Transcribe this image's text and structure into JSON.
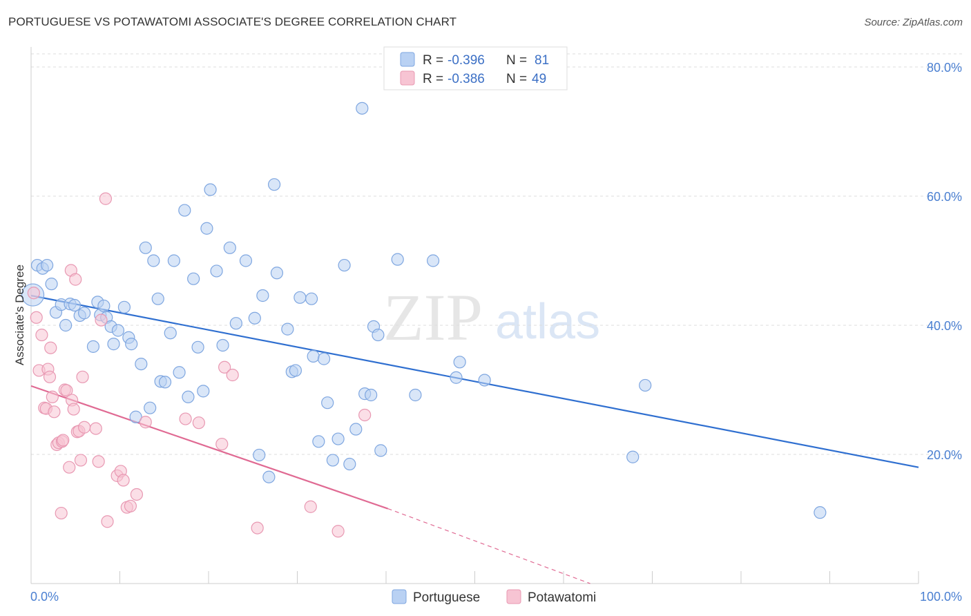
{
  "title": "PORTUGUESE VS POTAWATOMI ASSOCIATE'S DEGREE CORRELATION CHART",
  "source": "Source: ZipAtlas.com",
  "watermark": {
    "zip": "ZIP",
    "atlas": "atlas"
  },
  "colors": {
    "portuguese_fill": "#b9d1f3",
    "portuguese_stroke": "#7ea6e0",
    "portuguese_line": "#2f6fd0",
    "potawatomi_fill": "#f7c4d3",
    "potawatomi_stroke": "#e898b2",
    "potawatomi_line": "#e06a93",
    "axis_label": "#4a7fd1",
    "grid": "#dddddd"
  },
  "legend": {
    "rows": [
      {
        "r_label": "R = ",
        "r_value": "-0.396",
        "n_label": "N = ",
        "n_value": "81"
      },
      {
        "r_label": "R = ",
        "r_value": "-0.386",
        "n_label": "N = ",
        "n_value": "49"
      }
    ]
  },
  "chart_data": {
    "type": "scatter",
    "title": "PORTUGUESE VS POTAWATOMI ASSOCIATE'S DEGREE CORRELATION CHART",
    "xlabel": "",
    "ylabel": "Associate's Degree",
    "xlim": [
      0,
      100
    ],
    "ylim": [
      0,
      80
    ],
    "x_ticks": [
      0,
      100
    ],
    "x_tick_labels": [
      "0.0%",
      "100.0%"
    ],
    "y_ticks": [
      20,
      40,
      60,
      80
    ],
    "y_tick_labels": [
      "20.0%",
      "40.0%",
      "60.0%",
      "80.0%"
    ],
    "grid": true,
    "legend_position": "top-center",
    "series": [
      {
        "name": "Portuguese",
        "r": -0.396,
        "n": 81,
        "trend": {
          "x": [
            0,
            100
          ],
          "y": [
            44.6,
            18.0
          ],
          "dashed_from": null
        },
        "points": [
          [
            0.2,
            44.7,
            "big"
          ],
          [
            0.7,
            49.3
          ],
          [
            1.3,
            48.8
          ],
          [
            1.8,
            49.3
          ],
          [
            2.3,
            46.4
          ],
          [
            2.8,
            42.0
          ],
          [
            3.4,
            43.2
          ],
          [
            3.9,
            40.0
          ],
          [
            4.4,
            43.3
          ],
          [
            4.9,
            43.1
          ],
          [
            5.5,
            41.5
          ],
          [
            6.0,
            41.9
          ],
          [
            7.0,
            36.7
          ],
          [
            7.5,
            43.6
          ],
          [
            7.8,
            41.6
          ],
          [
            8.2,
            43.0
          ],
          [
            8.5,
            41.2
          ],
          [
            9.0,
            39.8
          ],
          [
            9.3,
            37.1
          ],
          [
            9.8,
            39.2
          ],
          [
            10.5,
            42.8
          ],
          [
            11.0,
            38.1
          ],
          [
            11.3,
            37.1
          ],
          [
            11.8,
            25.8
          ],
          [
            12.4,
            34.0
          ],
          [
            12.9,
            52.0
          ],
          [
            13.4,
            27.2
          ],
          [
            13.8,
            50.0
          ],
          [
            14.3,
            44.1
          ],
          [
            14.6,
            31.3
          ],
          [
            15.1,
            31.2
          ],
          [
            15.7,
            38.8
          ],
          [
            16.1,
            50.0
          ],
          [
            16.7,
            32.7
          ],
          [
            17.3,
            57.8
          ],
          [
            17.7,
            28.9
          ],
          [
            18.3,
            47.2
          ],
          [
            18.8,
            36.6
          ],
          [
            19.4,
            29.8
          ],
          [
            19.8,
            55.0
          ],
          [
            20.2,
            61.0
          ],
          [
            20.9,
            48.4
          ],
          [
            21.6,
            36.9
          ],
          [
            22.4,
            52.0
          ],
          [
            23.1,
            40.3
          ],
          [
            24.2,
            50.0
          ],
          [
            25.2,
            41.1
          ],
          [
            25.7,
            19.9
          ],
          [
            26.1,
            44.6
          ],
          [
            26.8,
            16.5
          ],
          [
            27.4,
            61.8
          ],
          [
            27.7,
            48.1
          ],
          [
            28.9,
            39.4
          ],
          [
            29.4,
            32.8
          ],
          [
            29.8,
            33.0
          ],
          [
            30.3,
            44.3
          ],
          [
            31.8,
            35.2
          ],
          [
            31.6,
            44.1
          ],
          [
            32.4,
            22.0
          ],
          [
            33.0,
            34.8
          ],
          [
            33.4,
            28.0
          ],
          [
            34.0,
            19.1
          ],
          [
            34.6,
            22.4
          ],
          [
            35.3,
            49.3
          ],
          [
            35.9,
            18.5
          ],
          [
            36.6,
            23.9
          ],
          [
            37.3,
            73.6
          ],
          [
            37.6,
            29.4
          ],
          [
            38.3,
            29.2
          ],
          [
            38.6,
            39.8
          ],
          [
            39.1,
            38.5
          ],
          [
            39.4,
            20.6
          ],
          [
            41.3,
            50.2
          ],
          [
            43.3,
            29.2
          ],
          [
            45.3,
            50.0
          ],
          [
            47.9,
            31.9
          ],
          [
            48.3,
            34.3
          ],
          [
            51.1,
            31.5
          ],
          [
            67.8,
            19.6
          ],
          [
            69.2,
            30.7
          ],
          [
            88.9,
            11.0
          ]
        ]
      },
      {
        "name": "Potawatomi",
        "r": -0.386,
        "n": 49,
        "trend": {
          "x": [
            0,
            40.2
          ],
          "y": [
            30.6,
            11.6
          ],
          "dashed_to": [
            63.0,
            0
          ]
        },
        "points": [
          [
            0.3,
            45.0
          ],
          [
            0.6,
            41.2
          ],
          [
            0.9,
            33.0
          ],
          [
            1.2,
            38.5
          ],
          [
            1.5,
            27.2
          ],
          [
            1.7,
            27.1
          ],
          [
            1.9,
            33.2
          ],
          [
            2.1,
            32.0
          ],
          [
            2.2,
            36.5
          ],
          [
            2.4,
            28.9
          ],
          [
            2.6,
            26.6
          ],
          [
            2.9,
            21.5
          ],
          [
            3.1,
            21.8
          ],
          [
            3.4,
            10.9
          ],
          [
            3.5,
            22.0
          ],
          [
            3.6,
            22.2
          ],
          [
            3.8,
            30.0
          ],
          [
            4.0,
            29.9
          ],
          [
            4.3,
            18.0
          ],
          [
            4.5,
            48.5
          ],
          [
            4.6,
            28.4
          ],
          [
            4.8,
            27.0
          ],
          [
            5.0,
            47.1
          ],
          [
            5.2,
            23.5
          ],
          [
            5.4,
            23.6
          ],
          [
            5.6,
            19.1
          ],
          [
            5.8,
            32.0
          ],
          [
            6.0,
            24.2
          ],
          [
            7.3,
            24.0
          ],
          [
            7.6,
            18.9
          ],
          [
            7.9,
            40.8
          ],
          [
            8.4,
            59.6
          ],
          [
            8.6,
            9.6
          ],
          [
            9.7,
            16.7
          ],
          [
            10.1,
            17.4
          ],
          [
            10.4,
            16.0
          ],
          [
            10.8,
            11.8
          ],
          [
            11.2,
            12.0
          ],
          [
            11.9,
            13.8
          ],
          [
            12.9,
            25.0
          ],
          [
            17.4,
            25.5
          ],
          [
            18.9,
            24.9
          ],
          [
            21.5,
            21.6
          ],
          [
            21.8,
            33.5
          ],
          [
            22.7,
            32.3
          ],
          [
            25.5,
            8.6
          ],
          [
            31.5,
            11.9
          ],
          [
            34.6,
            8.1
          ],
          [
            37.6,
            26.1
          ]
        ]
      }
    ]
  }
}
